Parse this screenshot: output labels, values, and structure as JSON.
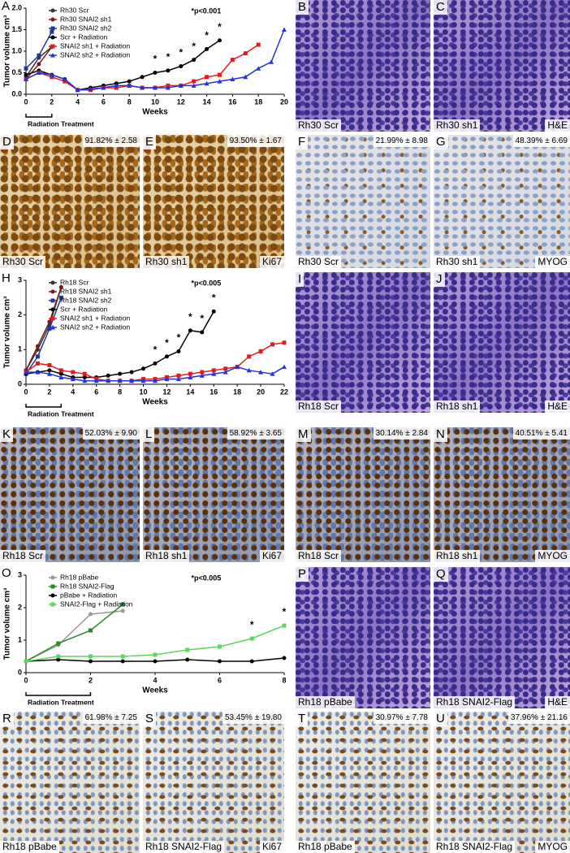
{
  "chart_data": [
    {
      "type": "line",
      "panel": "A",
      "ylabel": "Tumor volume cm³",
      "xlabel": "Weeks",
      "xlim": [
        0,
        20
      ],
      "xticks": [
        0,
        2,
        4,
        6,
        8,
        10,
        12,
        14,
        16,
        18,
        20
      ],
      "ylim": [
        0,
        2
      ],
      "yticks": [
        {
          "value": 0,
          "label": "0.0"
        },
        {
          "value": 0.5,
          "label": "0.5"
        },
        {
          "value": 1,
          "label": "1.0"
        },
        {
          "value": 1.5,
          "label": "1.5"
        },
        {
          "value": 2,
          "label": "2.0"
        }
      ],
      "annotation": "*p<0.001",
      "star": "*",
      "star_x": [
        10,
        11,
        12,
        13,
        14,
        15
      ],
      "treatment_label": "Radiation Treatment",
      "treatment_xlim": [
        0,
        2
      ],
      "series": [
        {
          "name": "Rh30 Scr",
          "color": "#333333",
          "marker": "circle",
          "x": [
            0,
            1,
            2
          ],
          "values": [
            0.4,
            0.85,
            1.1
          ]
        },
        {
          "name": "Rh30 SNAI2 sh1",
          "color": "#7a1a1a",
          "marker": "circle",
          "x": [
            0,
            1,
            2
          ],
          "values": [
            0.35,
            0.7,
            1.1
          ]
        },
        {
          "name": "Rh30 SNAI2 sh2",
          "color": "#1f3a93",
          "marker": "square",
          "x": [
            0,
            1,
            2
          ],
          "values": [
            0.6,
            0.9,
            1.45
          ]
        },
        {
          "name": "Scr + Radiation",
          "color": "#000000",
          "marker": "circle",
          "x": [
            0,
            1,
            2,
            3,
            4,
            5,
            6,
            7,
            8,
            9,
            10,
            11,
            12,
            13,
            14,
            15
          ],
          "values": [
            0.45,
            0.55,
            0.45,
            0.35,
            0.1,
            0.15,
            0.2,
            0.25,
            0.3,
            0.4,
            0.5,
            0.55,
            0.65,
            0.8,
            1.05,
            1.25
          ]
        },
        {
          "name": "SNAI2 sh1 + Radiation",
          "color": "#e41a1c",
          "marker": "square",
          "x": [
            0,
            1,
            2,
            3,
            4,
            5,
            6,
            7,
            8,
            9,
            10,
            11,
            12,
            13,
            14,
            15,
            16,
            17,
            18
          ],
          "values": [
            0.35,
            0.5,
            0.4,
            0.3,
            0.1,
            0.1,
            0.15,
            0.15,
            0.2,
            0.15,
            0.15,
            0.2,
            0.2,
            0.3,
            0.4,
            0.45,
            0.8,
            0.95,
            1.15
          ]
        },
        {
          "name": "SNAI2 sh2 + Radiation",
          "color": "#2233dd",
          "marker": "triangle",
          "x": [
            0,
            1,
            2,
            3,
            4,
            5,
            6,
            7,
            8,
            9,
            10,
            11,
            12,
            13,
            14,
            15,
            16,
            17,
            18,
            19,
            20
          ],
          "values": [
            0.35,
            0.5,
            0.45,
            0.35,
            0.1,
            0.12,
            0.15,
            0.2,
            0.2,
            0.15,
            0.15,
            0.15,
            0.2,
            0.2,
            0.25,
            0.3,
            0.35,
            0.4,
            0.6,
            0.75,
            1.5
          ]
        }
      ]
    },
    {
      "type": "line",
      "panel": "H",
      "ylabel": "Tumor volume cm³",
      "xlabel": "Weeks",
      "xlim": [
        0,
        22
      ],
      "xticks": [
        0,
        2,
        4,
        6,
        8,
        10,
        12,
        14,
        16,
        18,
        20,
        22
      ],
      "ylim": [
        0,
        3
      ],
      "yticks": [
        0,
        1,
        2,
        3
      ],
      "annotation": "*p<0.005",
      "star": "*",
      "star_x": [
        11,
        12,
        13,
        14,
        15,
        16
      ],
      "treatment_label": "Radiation Treatment",
      "treatment_xlim": [
        0,
        3
      ],
      "series": [
        {
          "name": "Rh18 Scr",
          "color": "#333333",
          "marker": "circle",
          "x": [
            0,
            1,
            2,
            3
          ],
          "values": [
            0.4,
            1.0,
            1.7,
            2.8
          ]
        },
        {
          "name": "Rh18 SNAI2 sh1",
          "color": "#7a1a1a",
          "marker": "circle",
          "x": [
            0,
            1,
            2,
            3
          ],
          "values": [
            0.4,
            1.1,
            1.8,
            2.8
          ]
        },
        {
          "name": "Rh18 SNAI2 sh2",
          "color": "#1f3a93",
          "marker": "square",
          "x": [
            0,
            1,
            2,
            3
          ],
          "values": [
            0.3,
            0.8,
            1.6,
            2.5
          ]
        },
        {
          "name": "Scr + Radiation",
          "color": "#000000",
          "marker": "circle",
          "x": [
            0,
            1,
            2,
            3,
            4,
            5,
            6,
            7,
            8,
            9,
            10,
            11,
            12,
            13,
            14,
            15,
            16
          ],
          "values": [
            0.3,
            0.35,
            0.4,
            0.3,
            0.2,
            0.2,
            0.2,
            0.25,
            0.3,
            0.35,
            0.45,
            0.6,
            0.8,
            0.95,
            1.55,
            1.5,
            2.1
          ]
        },
        {
          "name": "SNAI2 sh1 + Radiation",
          "color": "#e41a1c",
          "marker": "square",
          "x": [
            0,
            1,
            2,
            3,
            4,
            5,
            6,
            7,
            8,
            9,
            10,
            11,
            12,
            13,
            14,
            15,
            16,
            17,
            18,
            19,
            20,
            21,
            22
          ],
          "values": [
            0.35,
            0.6,
            0.55,
            0.4,
            0.35,
            0.3,
            0.15,
            0.1,
            0.1,
            0.1,
            0.15,
            0.15,
            0.2,
            0.25,
            0.3,
            0.35,
            0.4,
            0.45,
            0.5,
            0.8,
            0.95,
            1.15,
            1.2
          ]
        },
        {
          "name": "SNAI2 sh2 + Radiation",
          "color": "#2233dd",
          "marker": "triangle",
          "x": [
            0,
            1,
            2,
            3,
            4,
            5,
            6,
            7,
            8,
            9,
            10,
            11,
            12,
            13,
            14,
            15,
            16,
            17,
            18,
            19,
            20,
            21,
            22
          ],
          "values": [
            0.35,
            0.35,
            0.3,
            0.2,
            0.15,
            0.1,
            0.1,
            0.1,
            0.1,
            0.1,
            0.1,
            0.1,
            0.15,
            0.15,
            0.2,
            0.25,
            0.3,
            0.35,
            0.5,
            0.4,
            0.35,
            0.3,
            0.5
          ]
        }
      ]
    },
    {
      "type": "line",
      "panel": "O",
      "ylabel": "Tumor volume cm³",
      "xlabel": "Weeks",
      "xlim": [
        0,
        8
      ],
      "xticks": [
        0,
        2,
        4,
        6,
        8
      ],
      "ylim": [
        0,
        3
      ],
      "yticks": [
        0,
        1,
        2,
        3
      ],
      "annotation": "*p<0.005",
      "star": "*",
      "star_x": [
        7,
        8
      ],
      "treatment_label": "Radiation Treatment",
      "treatment_xlim": [
        0,
        2
      ],
      "series": [
        {
          "name": "Rh18 pBabe",
          "color": "#999999",
          "marker": "circle",
          "x": [
            0,
            1,
            2,
            3
          ],
          "values": [
            0.35,
            0.85,
            1.8,
            1.9
          ]
        },
        {
          "name": "Rh18 SNAI2-Flag",
          "color": "#2a8a2a",
          "marker": "square",
          "x": [
            0,
            1,
            2,
            3
          ],
          "values": [
            0.35,
            0.9,
            1.3,
            2.1
          ]
        },
        {
          "name": "pBabe + Radiation",
          "color": "#000000",
          "marker": "circle",
          "x": [
            0,
            1,
            2,
            3,
            4,
            5,
            6,
            7,
            8
          ],
          "values": [
            0.35,
            0.4,
            0.35,
            0.35,
            0.35,
            0.4,
            0.35,
            0.35,
            0.45
          ]
        },
        {
          "name": "SNAI2-Flag + Radiation",
          "color": "#5cd65c",
          "marker": "square",
          "x": [
            0,
            1,
            2,
            3,
            4,
            5,
            6,
            7,
            8
          ],
          "values": [
            0.35,
            0.5,
            0.5,
            0.5,
            0.55,
            0.7,
            0.8,
            1.05,
            1.45
          ]
        }
      ]
    }
  ],
  "panels": [
    {
      "letter": "B",
      "left": "Rh30 Scr"
    },
    {
      "letter": "C",
      "left": "Rh30 sh1",
      "right": "H&E"
    },
    {
      "letter": "D",
      "stat": "91.82% ± 2.58",
      "left": "Rh30 Scr"
    },
    {
      "letter": "E",
      "stat": "93.50% ± 1.67",
      "left": "Rh30 sh1",
      "right": "Ki67"
    },
    {
      "letter": "F",
      "stat": "21.99% ± 8.98",
      "left": "Rh30 Scr"
    },
    {
      "letter": "G",
      "stat": "48.39% ± 6.69",
      "left": "Rh30 sh1",
      "right": "MYOG"
    },
    {
      "letter": "I",
      "left": "Rh18 Scr"
    },
    {
      "letter": "J",
      "left": "Rh18 sh1",
      "right": "H&E"
    },
    {
      "letter": "K",
      "stat": "52.03% ± 9.90",
      "left": "Rh18 Scr"
    },
    {
      "letter": "L",
      "stat": "58.92% ± 3.65",
      "left": "Rh18 sh1",
      "right": "Ki67"
    },
    {
      "letter": "M",
      "stat": "30.14% ± 2.84",
      "left": "Rh18 Scr"
    },
    {
      "letter": "N",
      "stat": "40.51% ± 5.41",
      "left": "Rh18 sh1",
      "right": "MYOG"
    },
    {
      "letter": "P",
      "left": "Rh18 pBabe"
    },
    {
      "letter": "Q",
      "left": "Rh18 SNAI2-Flag",
      "right": "H&E"
    },
    {
      "letter": "R",
      "stat": "61.98% ± 7.25",
      "left": "Rh18 pBabe"
    },
    {
      "letter": "S",
      "stat": "53.45% ± 19.80",
      "left": "Rh18 SNAI2-Flag",
      "right": "Ki67"
    },
    {
      "letter": "T",
      "stat": "30.97% ± 7.78",
      "left": "Rh18 pBabe"
    },
    {
      "letter": "U",
      "stat": "37.96% ± 21.16",
      "left": "Rh18 SNAI2-Flag",
      "right": "MYOG"
    }
  ]
}
